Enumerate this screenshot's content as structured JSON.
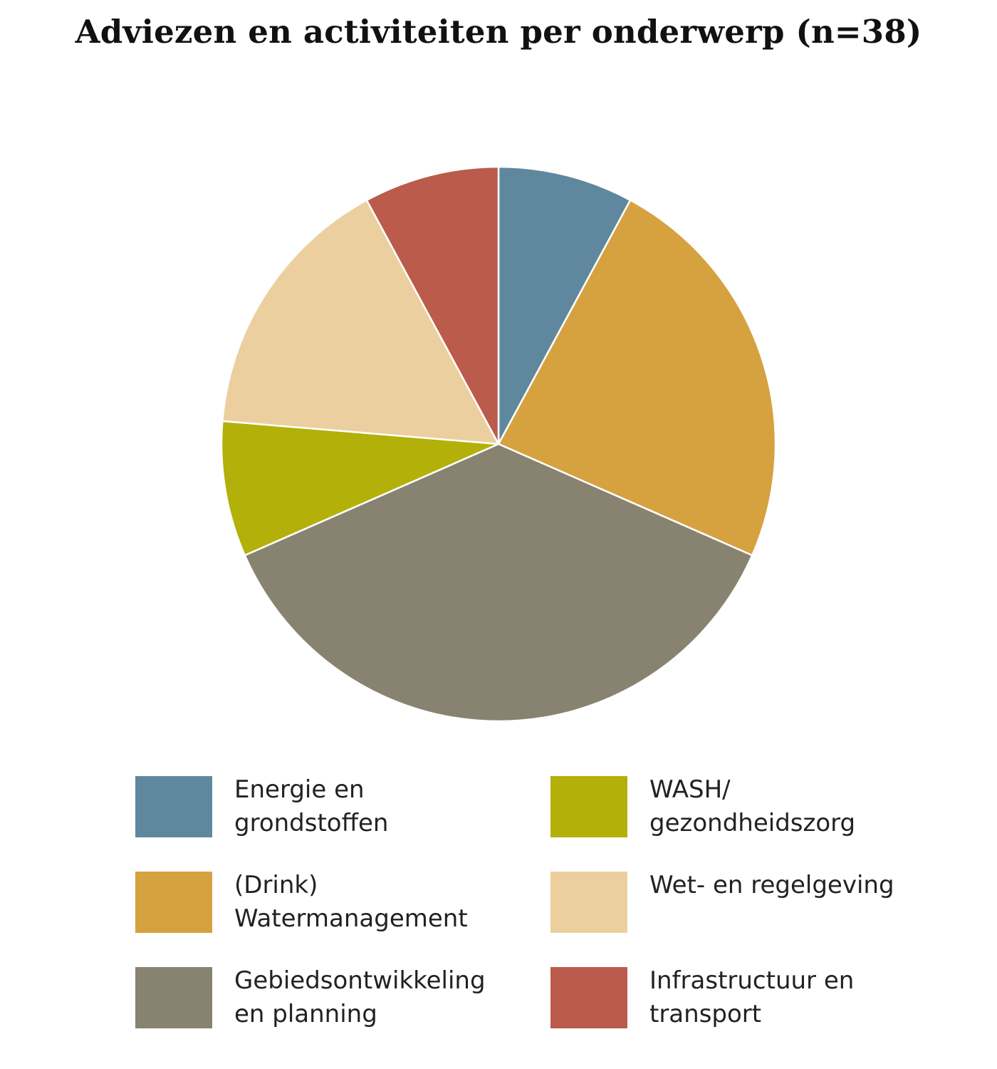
{
  "chart_data": {
    "type": "pie",
    "title": "Adviezen en activiteiten per onderwerp (n=38)",
    "legend_position": "bottom",
    "slices": [
      {
        "label": "Energie en\ngrondstoffen",
        "value": 3,
        "color": "#5f889f"
      },
      {
        "label": "(Drink)\nWatermanagement",
        "value": 9,
        "color": "#d6a13f"
      },
      {
        "label": "Gebiedsontwikkeling\nen planning",
        "value": 14,
        "color": "#888370"
      },
      {
        "label": "WASH/\ngezondheidszorg",
        "value": 3,
        "color": "#b3b009"
      },
      {
        "label": "Wet- en regelgeving",
        "value": 6,
        "color": "#eccf9e"
      },
      {
        "label": "Infrastructuur en\ntransport",
        "value": 3,
        "color": "#bb5b4b"
      }
    ]
  }
}
